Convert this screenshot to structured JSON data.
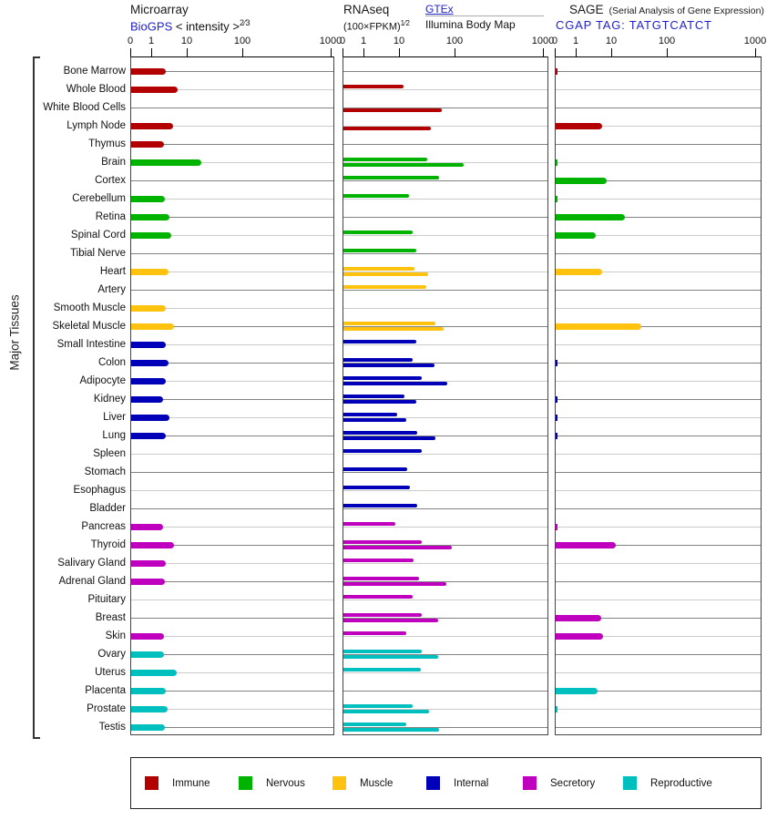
{
  "chart_data": {
    "type": "bar",
    "orientation": "horizontal",
    "x_scale": "power-decade axis labeled 0,1,10,100,1000",
    "axis_ticks": [
      "0",
      "1",
      "10",
      "100",
      "1000"
    ],
    "y_axis_label": "Major Tissues",
    "panels": [
      {
        "id": "microarray",
        "title": "Microarray",
        "link": "BioGPS",
        "subtitle": " < intensity >",
        "exponent": "2⁄3"
      },
      {
        "id": "rnaseq",
        "title": "RNAseq",
        "subtitle": "(100×FPKM)",
        "exponent": "1⁄2",
        "source_link": "GTEx",
        "source_name": "Illumina Body Map"
      },
      {
        "id": "sage",
        "title": "SAGE",
        "title_note": "(Serial Analysis of Gene Expression)",
        "link": "CGAP TAG: TATGTCATCT"
      }
    ],
    "legend": [
      {
        "id": "immune",
        "label": "Immune",
        "color": "#b30000"
      },
      {
        "id": "nervous",
        "label": "Nervous",
        "color": "#00b300"
      },
      {
        "id": "muscle",
        "label": "Muscle",
        "color": "#ffc20e"
      },
      {
        "id": "internal",
        "label": "Internal",
        "color": "#0000b8"
      },
      {
        "id": "secretory",
        "label": "Secretory",
        "color": "#bf00bf"
      },
      {
        "id": "reproductive",
        "label": "Reproductive",
        "color": "#00bfbf"
      }
    ],
    "tissues": [
      {
        "name": "Bone Marrow",
        "category": "immune",
        "microarray": 2.8,
        "gtex": null,
        "ibm": null,
        "sage": 0.1
      },
      {
        "name": "Whole Blood",
        "category": "immune",
        "microarray": 5.8,
        "gtex": 12,
        "ibm": null,
        "sage": null
      },
      {
        "name": "White Blood Cells",
        "category": "immune",
        "microarray": null,
        "gtex": null,
        "ibm": 62,
        "sage": null
      },
      {
        "name": "Lymph Node",
        "category": "immune",
        "microarray": 4.4,
        "gtex": null,
        "ibm": 41,
        "sage": 6
      },
      {
        "name": "Thymus",
        "category": "immune",
        "microarray": 2.4,
        "gtex": null,
        "ibm": null,
        "sage": null
      },
      {
        "name": "Brain",
        "category": "nervous",
        "microarray": 20,
        "gtex": 36,
        "ibm": 130,
        "sage": 0.1
      },
      {
        "name": "Cortex",
        "category": "nervous",
        "microarray": null,
        "gtex": 57,
        "ibm": null,
        "sage": 7.5
      },
      {
        "name": "Cerebellum",
        "category": "nervous",
        "microarray": 2.6,
        "gtex": 16,
        "ibm": null,
        "sage": 0.1
      },
      {
        "name": "Retina",
        "category": "nervous",
        "microarray": 3.5,
        "gtex": null,
        "ibm": null,
        "sage": 19
      },
      {
        "name": "Spinal Cord",
        "category": "nervous",
        "microarray": 4,
        "gtex": 19,
        "ibm": null,
        "sage": 4
      },
      {
        "name": "Tibial Nerve",
        "category": "nervous",
        "microarray": null,
        "gtex": 22,
        "ibm": null,
        "sage": null
      },
      {
        "name": "Heart",
        "category": "muscle",
        "microarray": 3.3,
        "gtex": 21,
        "ibm": 37,
        "sage": 6
      },
      {
        "name": "Artery",
        "category": "muscle",
        "microarray": null,
        "gtex": 34,
        "ibm": null,
        "sage": null
      },
      {
        "name": "Smooth Muscle",
        "category": "muscle",
        "microarray": 2.8,
        "gtex": null,
        "ibm": null,
        "sage": null
      },
      {
        "name": "Skeletal Muscle",
        "category": "muscle",
        "microarray": 4.6,
        "gtex": 49,
        "ibm": 66,
        "sage": 39
      },
      {
        "name": "Small Intestine",
        "category": "internal",
        "microarray": 2.8,
        "gtex": 22,
        "ibm": null,
        "sage": null
      },
      {
        "name": "Colon",
        "category": "internal",
        "microarray": 3.4,
        "gtex": 19,
        "ibm": 48,
        "sage": 0.1
      },
      {
        "name": "Adipocyte",
        "category": "internal",
        "microarray": 2.8,
        "gtex": 28,
        "ibm": 76,
        "sage": null
      },
      {
        "name": "Kidney",
        "category": "internal",
        "microarray": 2.3,
        "gtex": 13,
        "ibm": 22,
        "sage": 0.1
      },
      {
        "name": "Liver",
        "category": "internal",
        "microarray": 3.5,
        "gtex": 9,
        "ibm": 14,
        "sage": 0.1
      },
      {
        "name": "Lung",
        "category": "internal",
        "microarray": 2.8,
        "gtex": 23,
        "ibm": 49,
        "sage": 0.1
      },
      {
        "name": "Spleen",
        "category": "internal",
        "microarray": null,
        "gtex": 28,
        "ibm": null,
        "sage": null
      },
      {
        "name": "Stomach",
        "category": "internal",
        "microarray": null,
        "gtex": 15,
        "ibm": null,
        "sage": null
      },
      {
        "name": "Esophagus",
        "category": "internal",
        "microarray": null,
        "gtex": 17,
        "ibm": null,
        "sage": null
      },
      {
        "name": "Bladder",
        "category": "internal",
        "microarray": null,
        "gtex": 23,
        "ibm": null,
        "sage": null
      },
      {
        "name": "Pancreas",
        "category": "secretory",
        "microarray": 2.3,
        "gtex": 8,
        "ibm": null,
        "sage": 0.1
      },
      {
        "name": "Thyroid",
        "category": "secretory",
        "microarray": 4.6,
        "gtex": 28,
        "ibm": 90,
        "sage": 12
      },
      {
        "name": "Salivary Gland",
        "category": "secretory",
        "microarray": 2.7,
        "gtex": 20,
        "ibm": null,
        "sage": null
      },
      {
        "name": "Adrenal Gland",
        "category": "secretory",
        "microarray": 2.6,
        "gtex": 25,
        "ibm": 74,
        "sage": null
      },
      {
        "name": "Pituitary",
        "category": "secretory",
        "microarray": null,
        "gtex": 19,
        "ibm": null,
        "sage": null
      },
      {
        "name": "Breast",
        "category": "secretory",
        "microarray": null,
        "gtex": 28,
        "ibm": 55,
        "sage": 5.5
      },
      {
        "name": "Skin",
        "category": "secretory",
        "microarray": 2.4,
        "gtex": 14,
        "ibm": null,
        "sage": 6.3
      },
      {
        "name": "Ovary",
        "category": "reproductive",
        "microarray": 2.4,
        "gtex": 28,
        "ibm": 55,
        "sage": null
      },
      {
        "name": "Uterus",
        "category": "reproductive",
        "microarray": 5.5,
        "gtex": 27,
        "ibm": null,
        "sage": null
      },
      {
        "name": "Placenta",
        "category": "reproductive",
        "microarray": 2.8,
        "gtex": null,
        "ibm": null,
        "sage": 4.5
      },
      {
        "name": "Prostate",
        "category": "reproductive",
        "microarray": 3.1,
        "gtex": 19,
        "ibm": 39,
        "sage": 0.1
      },
      {
        "name": "Testis",
        "category": "reproductive",
        "microarray": 2.6,
        "gtex": 14,
        "ibm": 57,
        "sage": null
      }
    ]
  }
}
